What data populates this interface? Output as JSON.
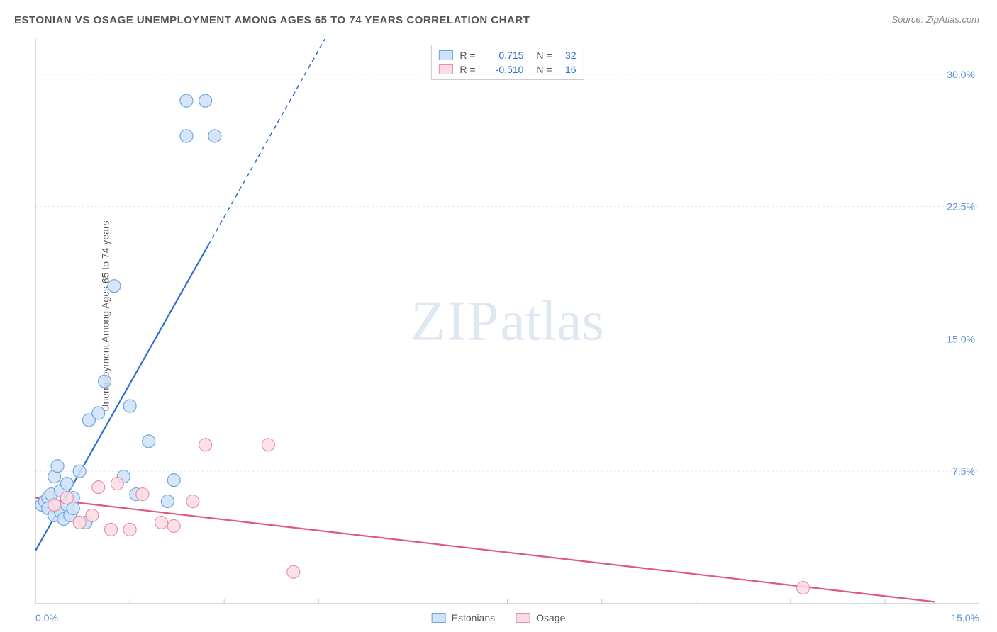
{
  "title": "ESTONIAN VS OSAGE UNEMPLOYMENT AMONG AGES 65 TO 74 YEARS CORRELATION CHART",
  "source": "Source: ZipAtlas.com",
  "ylabel": "Unemployment Among Ages 65 to 74 years",
  "watermark_zip": "ZIP",
  "watermark_atlas": "atlas",
  "chart": {
    "type": "scatter",
    "xlim": [
      0,
      15
    ],
    "ylim": [
      0,
      32
    ],
    "x_axis_label_min": "0.0%",
    "x_axis_label_max": "15.0%",
    "y_ticks": [
      7.5,
      15.0,
      22.5,
      30.0
    ],
    "y_tick_labels": [
      "7.5%",
      "15.0%",
      "22.5%",
      "30.0%"
    ],
    "x_minor_ticks": [
      1.5,
      3.0,
      4.5,
      6.0,
      7.5,
      9.0,
      10.5,
      12.0,
      13.5
    ],
    "grid_color": "#e8e8e8",
    "axis_color": "#cccccc",
    "tick_label_color": "#5b8fd6",
    "background_color": "#ffffff",
    "marker_radius": 9,
    "marker_stroke_width": 1.2,
    "trend_line_width": 2.2,
    "trend_dash": "6,5"
  },
  "series": {
    "estonians": {
      "label": "Estonians",
      "fill": "#cfe2f7",
      "stroke": "#6fa6e0",
      "line_color": "#2d6fd0",
      "r": "0.715",
      "r_color": "#2d6fd0",
      "n": "32",
      "points": [
        [
          0.1,
          5.6
        ],
        [
          0.15,
          5.8
        ],
        [
          0.2,
          6.0
        ],
        [
          0.2,
          5.4
        ],
        [
          0.25,
          6.2
        ],
        [
          0.3,
          5.0
        ],
        [
          0.3,
          7.2
        ],
        [
          0.35,
          7.8
        ],
        [
          0.4,
          5.2
        ],
        [
          0.4,
          6.4
        ],
        [
          0.45,
          4.8
        ],
        [
          0.5,
          5.6
        ],
        [
          0.5,
          6.8
        ],
        [
          0.55,
          5.0
        ],
        [
          0.6,
          6.0
        ],
        [
          0.6,
          5.4
        ],
        [
          0.7,
          7.5
        ],
        [
          0.8,
          4.6
        ],
        [
          0.85,
          10.4
        ],
        [
          1.0,
          10.8
        ],
        [
          1.1,
          12.6
        ],
        [
          1.25,
          18.0
        ],
        [
          1.4,
          7.2
        ],
        [
          1.5,
          11.2
        ],
        [
          1.6,
          6.2
        ],
        [
          1.8,
          9.2
        ],
        [
          2.1,
          5.8
        ],
        [
          2.2,
          7.0
        ],
        [
          2.4,
          28.5
        ],
        [
          2.7,
          28.5
        ],
        [
          2.4,
          26.5
        ],
        [
          2.85,
          26.5
        ]
      ],
      "trend": {
        "x1": 0,
        "y1": 3.0,
        "x2": 4.6,
        "y2": 32.0
      },
      "trend_solid_end_x": 2.75
    },
    "osage": {
      "label": "Osage",
      "fill": "#fbdce4",
      "stroke": "#e890a8",
      "line_color": "#e05780",
      "r": "-0.510",
      "r_color": "#2d6fd0",
      "n": "16",
      "points": [
        [
          0.3,
          5.6
        ],
        [
          0.5,
          6.0
        ],
        [
          0.7,
          4.6
        ],
        [
          0.9,
          5.0
        ],
        [
          1.0,
          6.6
        ],
        [
          1.2,
          4.2
        ],
        [
          1.3,
          6.8
        ],
        [
          1.5,
          4.2
        ],
        [
          1.7,
          6.2
        ],
        [
          2.0,
          4.6
        ],
        [
          2.2,
          4.4
        ],
        [
          2.5,
          5.8
        ],
        [
          2.7,
          9.0
        ],
        [
          3.7,
          9.0
        ],
        [
          4.1,
          1.8
        ],
        [
          12.2,
          0.9
        ]
      ],
      "trend": {
        "x1": 0,
        "y1": 6.0,
        "x2": 14.3,
        "y2": 0.1
      }
    }
  },
  "legend_top": {
    "r_label": "R =",
    "n_label": "N ="
  }
}
